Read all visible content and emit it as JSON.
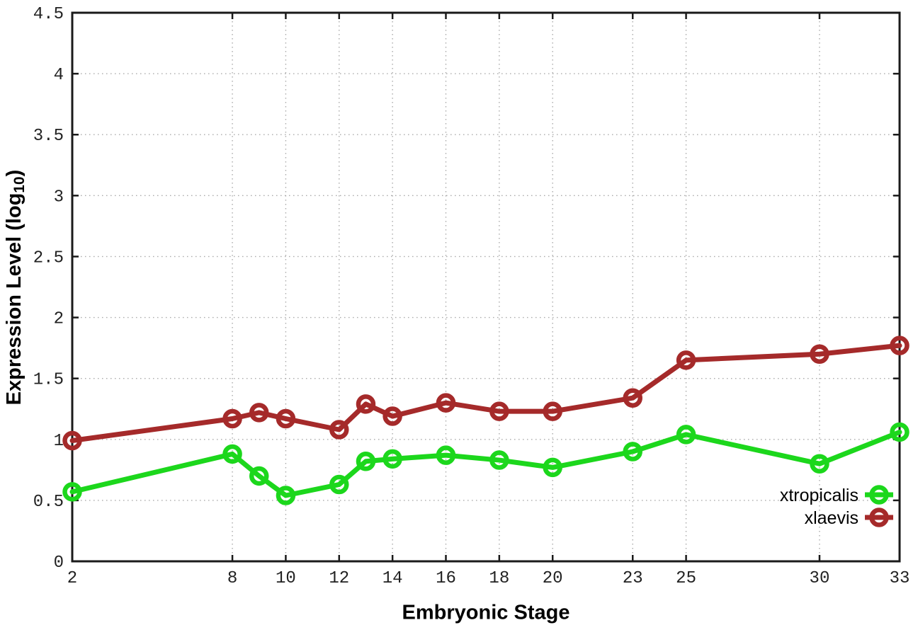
{
  "chart_data": {
    "type": "line",
    "title": "",
    "xlabel": "Embryonic Stage",
    "ylabel": {
      "text": "Expression Level (log",
      "sub": "10",
      "suffix": ")"
    },
    "xlim": [
      2,
      33
    ],
    "ylim": [
      0,
      4.5
    ],
    "x": [
      2,
      8,
      9,
      10,
      12,
      13,
      14,
      16,
      18,
      20,
      23,
      25,
      30,
      33
    ],
    "xtick_values": [
      2,
      8,
      10,
      12,
      14,
      16,
      18,
      20,
      23,
      25,
      30,
      33
    ],
    "xtick_labels": [
      "2",
      "8",
      "10",
      "12",
      "14",
      "16",
      "18",
      "20",
      "23",
      "25",
      "30",
      "33"
    ],
    "ytick_values": [
      0,
      0.5,
      1,
      1.5,
      2,
      2.5,
      3,
      3.5,
      4,
      4.5
    ],
    "ytick_labels": [
      "0",
      "0.5",
      "1",
      "1.5",
      "2",
      "2.5",
      "3",
      "3.5",
      "4",
      "4.5"
    ],
    "grid": true,
    "legend_position": "inside-bottom-right",
    "series": [
      {
        "name": "xtropicalis",
        "color": "#1cd71c",
        "marker": "open-circle",
        "values": [
          0.57,
          0.88,
          0.7,
          0.54,
          0.63,
          0.82,
          0.84,
          0.87,
          0.83,
          0.77,
          0.9,
          1.04,
          0.8,
          1.06
        ]
      },
      {
        "name": "xlaevis",
        "color": "#a52a2a",
        "marker": "open-circle",
        "values": [
          0.99,
          1.17,
          1.22,
          1.17,
          1.08,
          1.29,
          1.19,
          1.3,
          1.23,
          1.23,
          1.34,
          1.65,
          1.7,
          1.77
        ]
      }
    ]
  },
  "colors": {
    "background": "#ffffff",
    "axis": "#1a1a1a",
    "grid": "#aaaaaa",
    "tick_label": "#222222"
  }
}
